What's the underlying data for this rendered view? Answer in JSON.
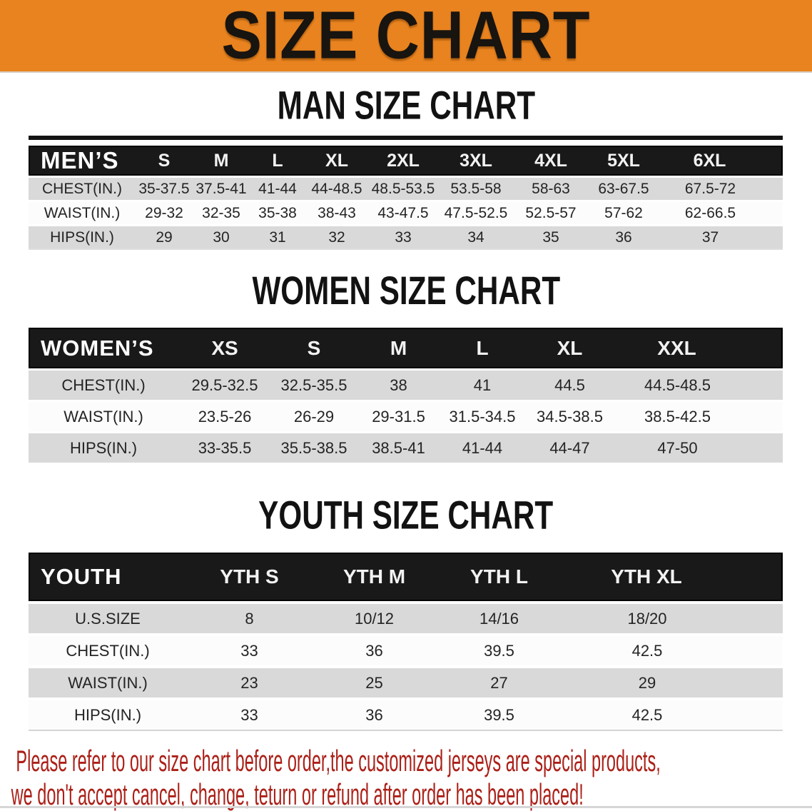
{
  "banner": {
    "title": "SIZE CHART"
  },
  "sections": [
    {
      "heading": "MAN SIZE CHART",
      "table": {
        "header_label": "MEN’S",
        "columns": [
          "S",
          "M",
          "L",
          "XL",
          "2XL",
          "3XL",
          "4XL",
          "5XL",
          "6XL"
        ],
        "rows": [
          {
            "label": "CHEST(IN.)",
            "values": [
              "35-37.5",
              "37.5-41",
              "41-44",
              "44-48.5",
              "48.5-53.5",
              "53.5-58",
              "58-63",
              "63-67.5",
              "67.5-72"
            ]
          },
          {
            "label": "WAIST(IN.)",
            "values": [
              "29-32",
              "32-35",
              "35-38",
              "38-43",
              "43-47.5",
              "47.5-52.5",
              "52.5-57",
              "57-62",
              "62-66.5"
            ]
          },
          {
            "label": "HIPS(IN.)",
            "values": [
              "29",
              "30",
              "31",
              "32",
              "33",
              "34",
              "35",
              "36",
              "37"
            ]
          }
        ]
      }
    },
    {
      "heading": "WOMEN SIZE CHART",
      "table": {
        "header_label": "WOMEN’S",
        "columns": [
          "XS",
          "S",
          "M",
          "L",
          "XL",
          "XXL"
        ],
        "rows": [
          {
            "label": "CHEST(IN.)",
            "values": [
              "29.5-32.5",
              "32.5-35.5",
              "38",
              "41",
              "44.5",
              "44.5-48.5"
            ]
          },
          {
            "label": "WAIST(IN.)",
            "values": [
              "23.5-26",
              "26-29",
              "29-31.5",
              "31.5-34.5",
              "34.5-38.5",
              "38.5-42.5"
            ]
          },
          {
            "label": "HIPS(IN.)",
            "values": [
              "33-35.5",
              "35.5-38.5",
              "38.5-41",
              "41-44",
              "44-47",
              "47-50"
            ]
          }
        ]
      }
    },
    {
      "heading": "YOUTH SIZE CHART",
      "table": {
        "header_label": "YOUTH",
        "columns": [
          "YTH S",
          "YTH M",
          "YTH L",
          "YTH XL"
        ],
        "rows": [
          {
            "label": "U.S.SIZE",
            "values": [
              "8",
              "10/12",
              "14/16",
              "18/20"
            ]
          },
          {
            "label": "CHEST(IN.)",
            "values": [
              "33",
              "36",
              "39.5",
              "42.5"
            ]
          },
          {
            "label": "WAIST(IN.)",
            "values": [
              "23",
              "25",
              "27",
              "29"
            ]
          },
          {
            "label": "HIPS(IN.)",
            "values": [
              "33",
              "36",
              "39.5",
              "42.5"
            ]
          }
        ]
      }
    }
  ],
  "footer": {
    "line1": "Please refer to our size chart before order,the customized jerseys are special products,",
    "line2": "we don't accept cancel, change, teturn or refund after order has been placed!"
  },
  "colors": {
    "banner_bg": "#E8831F",
    "header_bar": "#191919",
    "row_gray": "#D9D9D9",
    "row_white": "#FCFCFC",
    "footer_text": "#AB2018"
  }
}
